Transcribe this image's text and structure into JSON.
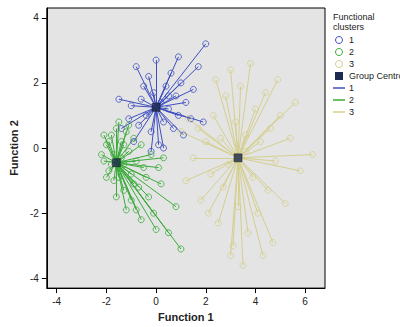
{
  "chart_data": {
    "type": "scatter",
    "xlabel": "Function 1",
    "ylabel": "Function 2",
    "xlim": [
      -4.4,
      6.8
    ],
    "xticks": [
      -4,
      -2,
      0,
      2,
      4,
      6
    ],
    "ylim": [
      -4.3,
      4.3
    ],
    "yticks": [
      -4,
      -2,
      0,
      2,
      4
    ],
    "grid": false,
    "legend": "right",
    "legend_title": "Functional clusters",
    "centroid_label": "Group Centroid",
    "series": [
      {
        "name": "1",
        "color": "#3e4fc1",
        "marker": "circle",
        "centroid": [
          0.0,
          1.25
        ],
        "values": [
          [
            -1.4,
            0.6
          ],
          [
            -1.1,
            0.9
          ],
          [
            -0.9,
            0.2
          ],
          [
            -0.7,
            0.7
          ],
          [
            -0.6,
            1.5
          ],
          [
            -0.5,
            1.9
          ],
          [
            -0.4,
            1.0
          ],
          [
            -0.3,
            2.2
          ],
          [
            -0.2,
            0.5
          ],
          [
            -0.1,
            1.7
          ],
          [
            0.0,
            2.7
          ],
          [
            0.1,
            0.1
          ],
          [
            0.2,
            1.4
          ],
          [
            0.3,
            0.8
          ],
          [
            0.4,
            1.9
          ],
          [
            0.5,
            1.2
          ],
          [
            0.6,
            2.3
          ],
          [
            0.7,
            0.6
          ],
          [
            0.8,
            1.6
          ],
          [
            0.9,
            1.0
          ],
          [
            1.0,
            2.0
          ],
          [
            1.1,
            0.4
          ],
          [
            1.2,
            1.4
          ],
          [
            1.4,
            0.9
          ],
          [
            1.7,
            2.5
          ],
          [
            2.0,
            3.2
          ],
          [
            1.5,
            1.8
          ],
          [
            -1.5,
            1.5
          ],
          [
            -0.8,
            2.5
          ],
          [
            0.3,
            0.0
          ],
          [
            -0.2,
            -0.1
          ],
          [
            0.9,
            2.8
          ],
          [
            -1.0,
            1.3
          ],
          [
            0.5,
            1.6
          ],
          [
            1.9,
            0.8
          ]
        ]
      },
      {
        "name": "2",
        "color": "#3bab3b",
        "marker": "circle",
        "centroid": [
          -1.6,
          -0.45
        ],
        "values": [
          [
            -2.1,
            -0.4
          ],
          [
            -2.0,
            0.1
          ],
          [
            -1.9,
            -0.7
          ],
          [
            -1.8,
            0.4
          ],
          [
            -1.7,
            -0.2
          ],
          [
            -1.6,
            0.6
          ],
          [
            -1.5,
            -0.9
          ],
          [
            -1.4,
            0.2
          ],
          [
            -1.3,
            -0.5
          ],
          [
            -1.2,
            0.5
          ],
          [
            -1.1,
            -0.1
          ],
          [
            -1.0,
            -0.8
          ],
          [
            -0.9,
            0.3
          ],
          [
            -0.8,
            -0.4
          ],
          [
            -0.7,
            -1.2
          ],
          [
            -0.6,
            0.1
          ],
          [
            -0.5,
            -0.6
          ],
          [
            -2.2,
            -0.2
          ],
          [
            -1.9,
            0.2
          ],
          [
            -1.7,
            -1.0
          ],
          [
            -1.5,
            0.8
          ],
          [
            -1.3,
            -1.3
          ],
          [
            -1.0,
            -1.6
          ],
          [
            -0.8,
            -1.9
          ],
          [
            -0.6,
            -2.2
          ],
          [
            -0.3,
            -1.5
          ],
          [
            -0.1,
            -2.0
          ],
          [
            0.2,
            -1.1
          ],
          [
            0.5,
            -2.6
          ],
          [
            1.0,
            -3.1
          ],
          [
            0.0,
            -2.5
          ],
          [
            -0.4,
            -0.9
          ],
          [
            -1.2,
            -1.9
          ],
          [
            -1.8,
            -0.5
          ],
          [
            -1.4,
            -0.3
          ],
          [
            -2.0,
            -0.9
          ],
          [
            0.3,
            -0.3
          ],
          [
            0.8,
            -1.8
          ],
          [
            -0.2,
            -0.2
          ],
          [
            -1.6,
            -1.5
          ],
          [
            -1.1,
            0.7
          ],
          [
            -0.9,
            -1.1
          ],
          [
            0.1,
            -0.6
          ],
          [
            -2.1,
            0.4
          ],
          [
            -1.3,
            0.1
          ]
        ]
      },
      {
        "name": "3",
        "color": "#d4cf8e",
        "marker": "circle",
        "centroid": [
          3.3,
          -0.3
        ],
        "values": [
          [
            1.0,
            0.5
          ],
          [
            1.2,
            -1.0
          ],
          [
            1.5,
            -0.3
          ],
          [
            1.7,
            0.6
          ],
          [
            1.8,
            -1.6
          ],
          [
            2.0,
            0.2
          ],
          [
            2.2,
            -0.8
          ],
          [
            2.3,
            1.0
          ],
          [
            2.5,
            -2.3
          ],
          [
            2.6,
            0.3
          ],
          [
            2.7,
            -1.2
          ],
          [
            2.8,
            1.6
          ],
          [
            2.9,
            -0.5
          ],
          [
            3.0,
            2.4
          ],
          [
            3.1,
            -3.0
          ],
          [
            3.2,
            0.8
          ],
          [
            3.3,
            -1.8
          ],
          [
            3.4,
            1.9
          ],
          [
            3.5,
            -3.6
          ],
          [
            3.6,
            0.4
          ],
          [
            3.7,
            -2.6
          ],
          [
            3.8,
            2.6
          ],
          [
            3.9,
            -0.9
          ],
          [
            4.0,
            1.2
          ],
          [
            4.1,
            -2.0
          ],
          [
            4.2,
            0.2
          ],
          [
            4.3,
            -3.3
          ],
          [
            4.4,
            1.7
          ],
          [
            4.5,
            -1.3
          ],
          [
            4.6,
            0.6
          ],
          [
            4.8,
            -0.4
          ],
          [
            5.0,
            1.0
          ],
          [
            5.2,
            -1.7
          ],
          [
            5.4,
            0.3
          ],
          [
            5.8,
            -0.7
          ],
          [
            6.3,
            -0.2
          ],
          [
            4.9,
            2.1
          ],
          [
            2.1,
            -2.0
          ],
          [
            3.6,
            -0.1
          ],
          [
            1.3,
            0.9
          ],
          [
            2.4,
            2.1
          ],
          [
            4.7,
            -2.9
          ],
          [
            5.6,
            1.4
          ],
          [
            3.0,
            -3.3
          ]
        ]
      }
    ]
  }
}
